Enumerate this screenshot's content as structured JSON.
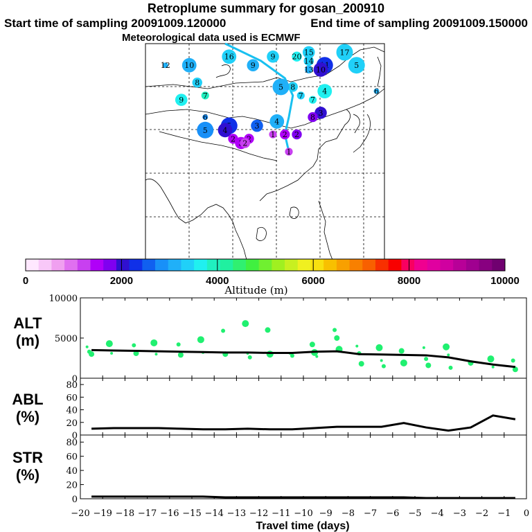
{
  "header": {
    "title": "Retroplume summary for gosan_200910",
    "start": "Start time of sampling 20091009.120000",
    "end": "End time of sampling 20091009.150000",
    "met": "Meteorological data used is ECMWF"
  },
  "colorbar": {
    "ticks": [
      "0",
      "2000",
      "4000",
      "6000",
      "8000",
      "10000"
    ],
    "label": "Altitude (m)",
    "colors": [
      "#ffe8ff",
      "#f8c8f8",
      "#f0a0f0",
      "#e070f0",
      "#c840f0",
      "#b000f8",
      "#8000f0",
      "#3010d0",
      "#1030e8",
      "#1060f0",
      "#1890f8",
      "#20b0f8",
      "#20d0f8",
      "#20f0f0",
      "#20f0c0",
      "#20f0a0",
      "#30f070",
      "#40f040",
      "#70f030",
      "#a0f020",
      "#c8f020",
      "#f0f020",
      "#f8e010",
      "#f8c000",
      "#f8a000",
      "#f88000",
      "#f86000",
      "#f83000",
      "#f80000",
      "#f80060",
      "#f00090",
      "#e000a0",
      "#d000a0",
      "#b80098",
      "#a00090",
      "#880080",
      "#700070"
    ]
  },
  "map": {
    "trajectory_color": "#18c0f0",
    "markers": [
      {
        "label": "12",
        "lon": 80,
        "lat": 52,
        "alt": 3000
      },
      {
        "label": "10",
        "lon": 86,
        "lat": 52,
        "alt": 3100
      },
      {
        "label": "8",
        "lon": 88,
        "lat": 48,
        "alt": 3500
      },
      {
        "label": "7",
        "lon": 90,
        "lat": 45,
        "alt": 3800
      },
      {
        "label": "9",
        "lon": 84,
        "lat": 44,
        "alt": 3600
      },
      {
        "label": "6",
        "lon": 90,
        "lat": 40,
        "alt": 2900
      },
      {
        "label": "5",
        "lon": 90,
        "lat": 37,
        "alt": 2800
      },
      {
        "label": "16",
        "lon": 96,
        "lat": 54,
        "alt": 3300
      },
      {
        "label": "9",
        "lon": 102,
        "lat": 52,
        "alt": 3100
      },
      {
        "label": "9",
        "lon": 107,
        "lat": 54,
        "alt": 3300
      },
      {
        "label": "20",
        "lon": 113,
        "lat": 54,
        "alt": 3600
      },
      {
        "label": "15",
        "lon": 116,
        "lat": 55,
        "alt": 3400
      },
      {
        "label": "14",
        "lon": 116,
        "lat": 53,
        "alt": 3300
      },
      {
        "label": "13",
        "lon": 116,
        "lat": 51,
        "alt": 3200
      },
      {
        "label": "17",
        "lon": 125,
        "lat": 55,
        "alt": 3500
      },
      {
        "label": "11",
        "lon": 120,
        "lat": 52,
        "alt": 2300
      },
      {
        "label": "10",
        "lon": 119,
        "lat": 51,
        "alt": 2100
      },
      {
        "label": "5",
        "lon": 128,
        "lat": 52,
        "alt": 3500
      },
      {
        "label": "6",
        "lon": 133,
        "lat": 46,
        "alt": 3200
      },
      {
        "label": "8",
        "lon": 112,
        "lat": 47,
        "alt": 3400
      },
      {
        "label": "5",
        "lon": 109,
        "lat": 47,
        "alt": 3100
      },
      {
        "label": "7",
        "lon": 114,
        "lat": 45,
        "alt": 3300
      },
      {
        "label": "4",
        "lon": 120,
        "lat": 46,
        "alt": 3600
      },
      {
        "label": "7",
        "lon": 117,
        "lat": 44,
        "alt": 3700
      },
      {
        "label": "3",
        "lon": 119,
        "lat": 41,
        "alt": 1900
      },
      {
        "label": "8",
        "lon": 117,
        "lat": 40,
        "alt": 1800
      },
      {
        "label": "4",
        "lon": 108,
        "lat": 39,
        "alt": 3200
      },
      {
        "label": "5",
        "lon": 96,
        "lat": 38,
        "alt": 2300
      },
      {
        "label": "4",
        "lon": 95,
        "lat": 37,
        "alt": 2100
      },
      {
        "label": "3",
        "lon": 103,
        "lat": 38,
        "alt": 2500
      },
      {
        "label": "2",
        "lon": 113,
        "lat": 36,
        "alt": 1700
      },
      {
        "label": "2",
        "lon": 110,
        "lat": 36,
        "alt": 1600
      },
      {
        "label": "2",
        "lon": 101,
        "lat": 35,
        "alt": 1400
      },
      {
        "label": "3",
        "lon": 99,
        "lat": 34,
        "alt": 1500
      },
      {
        "label": "2",
        "lon": 97,
        "lat": 35,
        "alt": 1400
      },
      {
        "label": "2",
        "lon": 100,
        "lat": 34,
        "alt": 1300
      },
      {
        "label": "1",
        "lon": 107,
        "lat": 36,
        "alt": 1200
      },
      {
        "label": "1",
        "lon": 111,
        "lat": 32,
        "alt": 1100
      }
    ]
  },
  "chart_data": [
    {
      "type": "scatter",
      "panel": "ALT",
      "ylabel": "ALT (m)",
      "ylim": [
        0,
        10000
      ],
      "yticks": [
        0,
        5000,
        10000
      ],
      "x": [
        -19.5,
        -18.5,
        -17.5,
        -16.5,
        -15.5,
        -14.5,
        -13.5,
        -12.5,
        -11.5,
        -10.5,
        -9.5,
        -8.5,
        -7.5,
        -6.5,
        -5.5,
        -4.5,
        -3.5,
        -2.5,
        -1.5,
        -0.5
      ],
      "median": [
        3500,
        3450,
        3400,
        3350,
        3300,
        3250,
        3200,
        3200,
        3150,
        3150,
        3300,
        3350,
        3000,
        2950,
        2900,
        2850,
        2600,
        2100,
        1700,
        1400
      ],
      "points": [
        [
          -19.7,
          3900
        ],
        [
          -19.6,
          3300
        ],
        [
          -19.5,
          3000
        ],
        [
          -18.7,
          4300
        ],
        [
          -18.6,
          3100
        ],
        [
          -17.6,
          4100
        ],
        [
          -17.5,
          3100
        ],
        [
          -16.7,
          4400
        ],
        [
          -16.6,
          3000
        ],
        [
          -15.6,
          4200
        ],
        [
          -15.5,
          2900
        ],
        [
          -14.6,
          4800
        ],
        [
          -14.5,
          3200
        ],
        [
          -13.6,
          5900
        ],
        [
          -13.5,
          3000
        ],
        [
          -12.6,
          6800
        ],
        [
          -12.5,
          3100
        ],
        [
          -12.4,
          2600
        ],
        [
          -11.6,
          6000
        ],
        [
          -11.5,
          3000
        ],
        [
          -10.6,
          3100
        ],
        [
          -10.5,
          2800
        ],
        [
          -9.6,
          4200
        ],
        [
          -9.5,
          3200
        ],
        [
          -9.4,
          2700
        ],
        [
          -8.6,
          6000
        ],
        [
          -8.5,
          5000
        ],
        [
          -8.4,
          3600
        ],
        [
          -7.6,
          4000
        ],
        [
          -7.5,
          3100
        ],
        [
          -7.4,
          1800
        ],
        [
          -6.6,
          3800
        ],
        [
          -6.5,
          2200
        ],
        [
          -6.4,
          1500
        ],
        [
          -5.6,
          3400
        ],
        [
          -5.5,
          1900
        ],
        [
          -4.6,
          3800
        ],
        [
          -4.5,
          2400
        ],
        [
          -4.4,
          1600
        ],
        [
          -3.6,
          3900
        ],
        [
          -3.5,
          2900
        ],
        [
          -3.4,
          1300
        ],
        [
          -2.5,
          1900
        ],
        [
          -1.6,
          2400
        ],
        [
          -1.5,
          1400
        ],
        [
          -0.6,
          2200
        ],
        [
          -0.5,
          1100
        ]
      ]
    },
    {
      "type": "line",
      "panel": "ABL",
      "ylabel": "ABL (%)",
      "ylim": [
        0,
        90
      ],
      "yticks": [
        0,
        20,
        40,
        60,
        80
      ],
      "x": [
        -19.5,
        -18.5,
        -17.5,
        -16.5,
        -15.5,
        -14.5,
        -13.5,
        -12.5,
        -11.5,
        -10.5,
        -9.5,
        -8.5,
        -7.5,
        -6.5,
        -5.5,
        -4.5,
        -3.5,
        -2.5,
        -1.5,
        -0.5
      ],
      "values": [
        10,
        11,
        11,
        11,
        10,
        9,
        9,
        10,
        9,
        9,
        11,
        13,
        13,
        13,
        19,
        12,
        7,
        12,
        31,
        25
      ]
    },
    {
      "type": "line",
      "panel": "STR",
      "ylabel": "STR (%)",
      "ylim": [
        0,
        90
      ],
      "yticks": [
        0,
        20,
        40,
        60,
        80
      ],
      "x": [
        -19.5,
        -18.5,
        -17.5,
        -16.5,
        -15.5,
        -14.5,
        -13.5,
        -12.5,
        -11.5,
        -10.5,
        -9.5,
        -8.5,
        -7.5,
        -6.5,
        -5.5,
        -4.5,
        -3.5,
        -2.5,
        -1.5,
        -0.5
      ],
      "values": [
        3,
        3,
        3,
        3,
        3,
        3,
        2,
        2,
        2,
        2,
        2,
        2,
        2,
        2,
        2,
        1,
        1,
        1,
        1,
        1
      ]
    }
  ],
  "xaxis": {
    "label": "Travel time (days)",
    "ticks": [
      "−20",
      "−19",
      "−18",
      "−17",
      "−16",
      "−15",
      "−14",
      "−13",
      "−12",
      "−11",
      "−10",
      "−9",
      "−8",
      "−7",
      "−6",
      "−5",
      "−4",
      "−3",
      "−2",
      "−1",
      "0"
    ],
    "xlim": [
      -20,
      0
    ]
  },
  "labels": {
    "alt_line1": "ALT",
    "alt_line2": "(m)",
    "abl_line1": "ABL",
    "abl_line2": "(%)",
    "str_line1": "STR",
    "str_line2": "(%)"
  },
  "colors": {
    "scatter": "#20f070",
    "line": "#000000"
  }
}
